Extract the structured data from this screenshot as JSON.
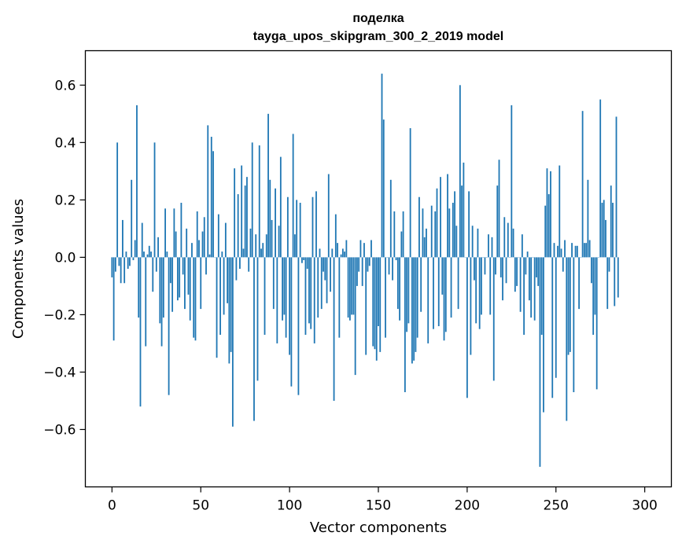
{
  "chart_data": {
    "type": "bar",
    "title_lines": [
      "поделка",
      "tayga_upos_skipgram_300_2_2019 model"
    ],
    "xlabel": "Vector components",
    "ylabel": "Components values",
    "xlim": [
      -15,
      315
    ],
    "ylim": [
      -0.8,
      0.72
    ],
    "xticks": [
      0,
      50,
      100,
      150,
      200,
      250,
      300
    ],
    "xtick_labels": [
      "0",
      "50",
      "100",
      "150",
      "200",
      "250",
      "300"
    ],
    "yticks": [
      -0.6,
      -0.4,
      -0.2,
      0.0,
      0.2,
      0.4,
      0.6
    ],
    "ytick_labels": [
      "−0.6",
      "−0.4",
      "−0.2",
      "0.0",
      "0.2",
      "0.4",
      "0.6"
    ],
    "bar_color": "#1f77b4",
    "grid": false,
    "values": [
      -0.07,
      -0.29,
      -0.05,
      0.4,
      -0.03,
      -0.09,
      0.13,
      -0.09,
      0.02,
      -0.04,
      -0.03,
      0.27,
      -0.01,
      0.06,
      0.53,
      -0.21,
      -0.52,
      0.12,
      0.02,
      -0.31,
      0.01,
      0.04,
      0.02,
      -0.12,
      0.4,
      -0.05,
      0.07,
      -0.23,
      -0.31,
      -0.21,
      0.17,
      0.02,
      -0.48,
      -0.09,
      -0.19,
      0.17,
      0.09,
      -0.15,
      -0.14,
      0.19,
      -0.06,
      -0.18,
      0.1,
      -0.13,
      -0.22,
      0.05,
      -0.28,
      -0.29,
      0.16,
      0.06,
      -0.18,
      0.09,
      0.14,
      -0.06,
      0.46,
      0.01,
      0.42,
      0.37,
      0.0,
      -0.35,
      0.15,
      -0.27,
      0.02,
      -0.2,
      0.12,
      -0.16,
      -0.37,
      -0.33,
      -0.59,
      0.31,
      -0.08,
      0.22,
      -0.04,
      0.32,
      0.03,
      0.25,
      0.28,
      -0.05,
      0.1,
      0.4,
      -0.57,
      0.08,
      -0.43,
      0.39,
      0.03,
      0.05,
      -0.27,
      0.08,
      0.5,
      0.27,
      0.13,
      -0.18,
      0.24,
      -0.3,
      0.11,
      0.35,
      -0.22,
      -0.2,
      -0.28,
      0.21,
      -0.34,
      -0.45,
      0.43,
      0.08,
      0.2,
      -0.48,
      0.19,
      -0.02,
      -0.01,
      -0.27,
      -0.04,
      -0.23,
      -0.25,
      0.21,
      -0.3,
      0.23,
      -0.21,
      0.03,
      -0.18,
      -0.05,
      -0.08,
      -0.16,
      0.29,
      -0.12,
      0.03,
      -0.5,
      0.15,
      0.05,
      -0.28,
      0.01,
      0.03,
      0.02,
      0.06,
      -0.21,
      -0.22,
      -0.2,
      -0.2,
      -0.41,
      -0.1,
      -0.05,
      0.06,
      -0.1,
      0.05,
      -0.34,
      -0.05,
      -0.03,
      0.06,
      -0.31,
      -0.32,
      -0.36,
      -0.24,
      -0.33,
      0.64,
      0.48,
      -0.28,
      0.0,
      -0.06,
      0.27,
      -0.08,
      0.16,
      -0.01,
      -0.18,
      -0.22,
      0.09,
      0.16,
      -0.47,
      -0.26,
      -0.23,
      0.45,
      -0.37,
      -0.36,
      -0.33,
      -0.28,
      0.21,
      -0.19,
      0.17,
      0.07,
      0.1,
      -0.3,
      0.0,
      0.18,
      -0.25,
      0.16,
      0.24,
      -0.24,
      0.28,
      -0.13,
      -0.29,
      -0.26,
      0.29,
      0.17,
      -0.21,
      0.19,
      0.23,
      0.11,
      -0.18,
      0.6,
      0.25,
      0.33,
      0.0,
      -0.49,
      0.23,
      -0.34,
      0.11,
      -0.08,
      -0.23,
      0.1,
      -0.25,
      -0.2,
      0.0,
      -0.06,
      0.0,
      0.08,
      -0.2,
      0.07,
      -0.43,
      -0.06,
      0.25,
      0.34,
      -0.07,
      -0.15,
      0.14,
      -0.09,
      0.12,
      0.0,
      0.53,
      0.1,
      -0.12,
      -0.1,
      0.0,
      -0.19,
      0.08,
      -0.27,
      -0.06,
      0.02,
      -0.15,
      -0.21,
      0.0,
      -0.22,
      -0.07,
      -0.1,
      -0.73,
      -0.27,
      -0.54,
      0.18,
      0.31,
      0.22,
      0.3,
      -0.49,
      0.05,
      -0.42,
      0.04,
      0.32,
      0.03,
      -0.05,
      0.06,
      -0.57,
      -0.34,
      -0.33,
      0.05,
      -0.47,
      0.04,
      0.04,
      -0.18,
      0.0,
      0.51,
      0.05,
      0.05,
      0.27,
      0.06,
      -0.09,
      -0.27,
      -0.2,
      -0.46,
      0.0,
      0.55,
      0.19,
      0.2,
      0.13,
      -0.18,
      -0.05,
      0.25,
      0.19,
      -0.17,
      0.49,
      -0.14
    ]
  }
}
